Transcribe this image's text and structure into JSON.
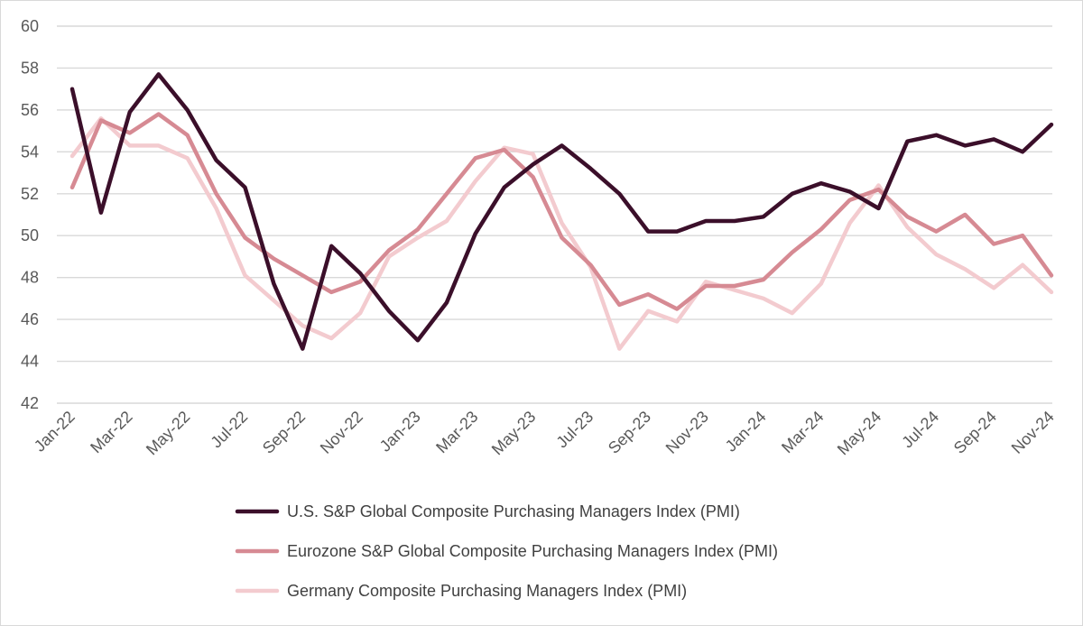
{
  "chart_data": {
    "type": "line",
    "title": "",
    "xlabel": "",
    "ylabel": "",
    "ylim": [
      42,
      60
    ],
    "yticks": [
      42,
      44,
      46,
      48,
      50,
      52,
      54,
      56,
      58,
      60
    ],
    "grid": true,
    "legend_position": "bottom",
    "x": [
      "Jan-22",
      "Feb-22",
      "Mar-22",
      "Apr-22",
      "May-22",
      "Jun-22",
      "Jul-22",
      "Aug-22",
      "Sep-22",
      "Oct-22",
      "Nov-22",
      "Dec-22",
      "Jan-23",
      "Feb-23",
      "Mar-23",
      "Apr-23",
      "May-23",
      "Jun-23",
      "Jul-23",
      "Aug-23",
      "Sep-23",
      "Oct-23",
      "Nov-23",
      "Dec-23",
      "Jan-24",
      "Feb-24",
      "Mar-24",
      "Apr-24",
      "May-24",
      "Jun-24",
      "Jul-24",
      "Aug-24",
      "Sep-24",
      "Oct-24",
      "Nov-24"
    ],
    "xtick_labels": [
      "Jan-22",
      "Mar-22",
      "May-22",
      "Jul-22",
      "Sep-22",
      "Nov-22",
      "Jan-23",
      "Mar-23",
      "May-23",
      "Jul-23",
      "Sep-23",
      "Nov-23",
      "Jan-24",
      "Mar-24",
      "May-24",
      "Jul-24",
      "Sep-24",
      "Nov-24"
    ],
    "series": [
      {
        "name": "U.S. S&P Global Composite Purchasing Managers Index (PMI)",
        "color": "#3b0f2a",
        "values": [
          57.0,
          51.1,
          55.9,
          57.7,
          56.0,
          53.6,
          52.3,
          47.7,
          44.6,
          49.5,
          48.2,
          46.4,
          45.0,
          46.8,
          50.1,
          52.3,
          53.4,
          54.3,
          53.2,
          52.0,
          50.2,
          50.2,
          50.7,
          50.7,
          50.9,
          52.0,
          52.5,
          52.1,
          51.3,
          54.5,
          54.8,
          54.3,
          54.6,
          54.0,
          55.3
        ]
      },
      {
        "name": "Eurozone S&P Global Composite Purchasing Managers Index (PMI)",
        "color": "#d68a93",
        "values": [
          52.3,
          55.5,
          54.9,
          55.8,
          54.8,
          52.0,
          49.9,
          48.9,
          48.1,
          47.3,
          47.8,
          49.3,
          50.3,
          52.0,
          53.7,
          54.1,
          52.8,
          49.9,
          48.6,
          46.7,
          47.2,
          46.5,
          47.6,
          47.6,
          47.9,
          49.2,
          50.3,
          51.7,
          52.2,
          50.9,
          50.2,
          51.0,
          49.6,
          50.0,
          48.1
        ]
      },
      {
        "name": "Germany Composite Purchasing Managers Index (PMI)",
        "color": "#f3cbcf",
        "values": [
          53.8,
          55.6,
          54.3,
          54.3,
          53.7,
          51.3,
          48.1,
          46.9,
          45.7,
          45.1,
          46.3,
          49.0,
          49.9,
          50.7,
          52.6,
          54.2,
          53.9,
          50.6,
          48.5,
          44.6,
          46.4,
          45.9,
          47.8,
          47.4,
          47.0,
          46.3,
          47.7,
          50.6,
          52.4,
          50.4,
          49.1,
          48.4,
          47.5,
          48.6,
          47.3
        ]
      }
    ]
  }
}
